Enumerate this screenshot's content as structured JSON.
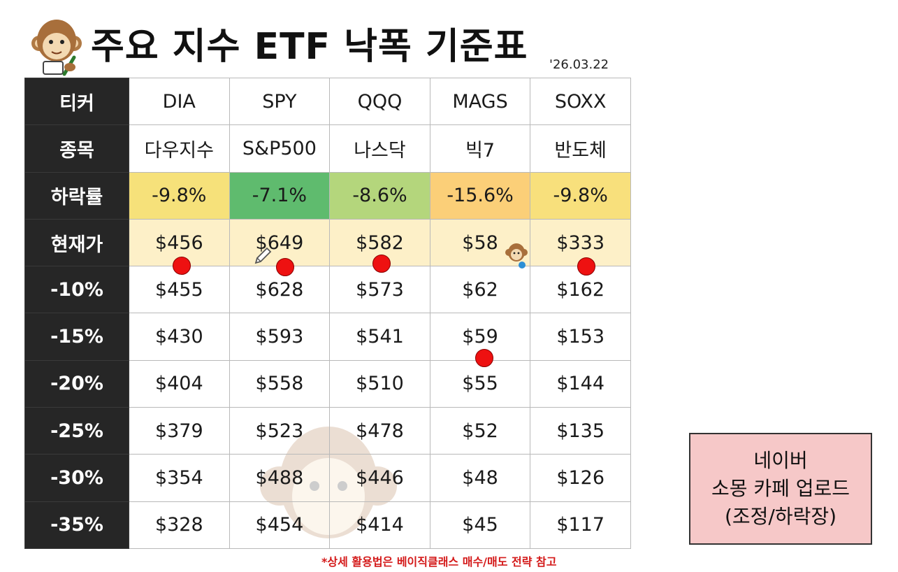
{
  "header": {
    "title": "주요 지수 ETF 낙폭 기준표",
    "date": "'26.03.22"
  },
  "table": {
    "rows": [
      {
        "label": "티커",
        "cells": [
          "DIA",
          "SPY",
          "QQQ",
          "MAGS",
          "SOXX"
        ]
      },
      {
        "label": "종목",
        "cells": [
          "다우지수",
          "S&P500",
          "나스닥",
          "빅7",
          "반도체"
        ]
      },
      {
        "label": "하락률",
        "cells": [
          "-9.8%",
          "-7.1%",
          "-8.6%",
          "-15.6%",
          "-9.8%"
        ]
      },
      {
        "label": "현재가",
        "cells": [
          "$456",
          "$649",
          "$582",
          "$58",
          "$333"
        ]
      },
      {
        "label": "-10%",
        "cells": [
          "$455",
          "$628",
          "$573",
          "$62",
          "$162"
        ]
      },
      {
        "label": "-15%",
        "cells": [
          "$430",
          "$593",
          "$541",
          "$59",
          "$153"
        ]
      },
      {
        "label": "-20%",
        "cells": [
          "$404",
          "$558",
          "$510",
          "$55",
          "$144"
        ]
      },
      {
        "label": "-25%",
        "cells": [
          "$379",
          "$523",
          "$478",
          "$52",
          "$135"
        ]
      },
      {
        "label": "-30%",
        "cells": [
          "$354",
          "$488",
          "$446",
          "$48",
          "$126"
        ]
      },
      {
        "label": "-35%",
        "cells": [
          "$328",
          "$454",
          "$414",
          "$45",
          "$117"
        ]
      }
    ],
    "decline_colors": [
      "#f6e17a",
      "#5fbb6e",
      "#b4d67c",
      "#fbcf78",
      "#f8e07c"
    ],
    "price_row_color": "#fdf0c8",
    "header_col_color": "#262626"
  },
  "footnote": "*상세 활용법은 베이직클래스 매수/매도 전략 참고",
  "cafe_box": {
    "line1": "네이버",
    "line2": "소몽 카페 업로드",
    "line3": "(조정/하락장)"
  },
  "icons": [
    "monkey-mascot-icon",
    "pencil-icon",
    "small-monkey-icon",
    "monkey-watermark-icon"
  ],
  "marker_color": "#ee1111"
}
